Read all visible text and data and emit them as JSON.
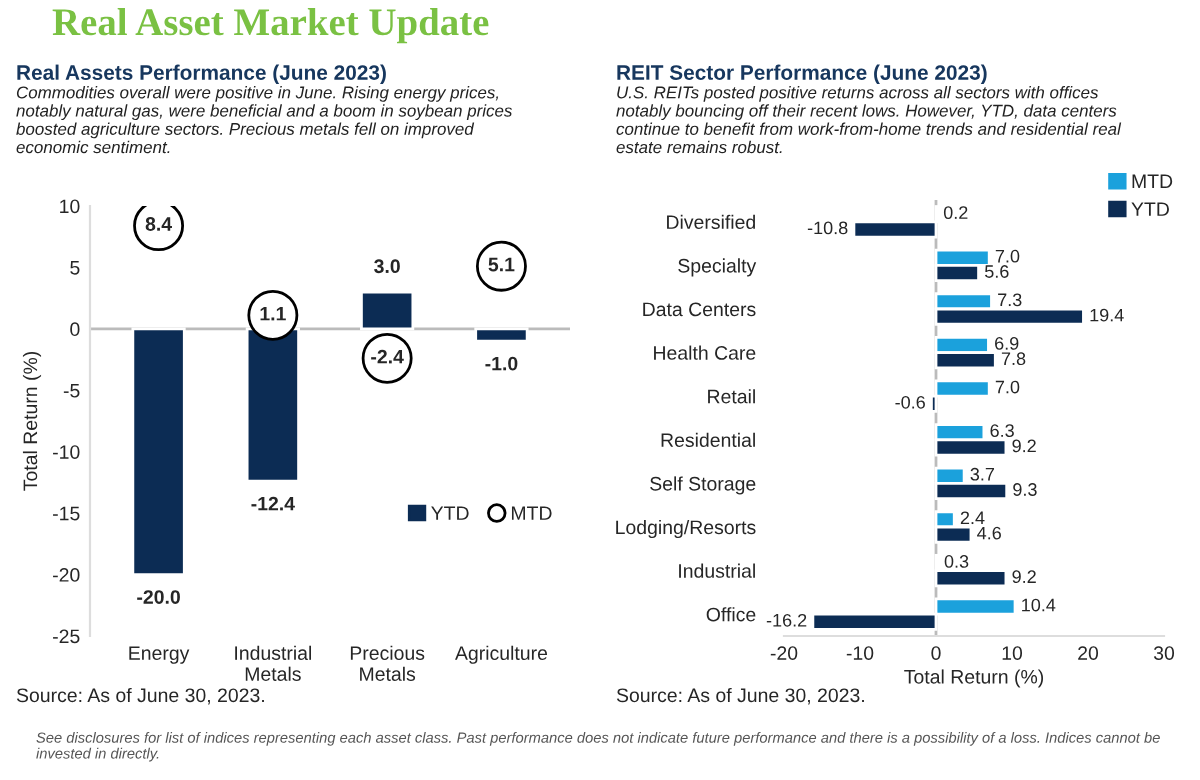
{
  "chart_data": [
    {
      "type": "bar",
      "title": "Real Assets Performance (June 2023)",
      "subtitle": "Commodities overall were positive in June. Rising energy prices, notably natural gas, were beneficial and a boom in soybean prices boosted agriculture sectors. Precious metals fell on improved economic sentiment.",
      "ylabel": "Total Return (%)",
      "categories": [
        "Energy",
        "Industrial\nMetals",
        "Precious\nMetals",
        "Agriculture"
      ],
      "series": [
        {
          "name": "YTD",
          "type": "bar",
          "color": "#0c2c54",
          "values": [
            -20.0,
            -12.4,
            3.0,
            -1.0
          ],
          "value_labels": [
            "-20.0",
            "-12.4",
            "3.0",
            "-1.0"
          ]
        },
        {
          "name": "MTD",
          "type": "scatter",
          "marker": "circle",
          "color": "#000000",
          "values": [
            8.4,
            1.1,
            -2.4,
            5.1
          ],
          "value_labels": [
            "8.4",
            "1.1",
            "-2.4",
            "5.1"
          ]
        }
      ],
      "ylim": [
        -25,
        10
      ],
      "yticks": [
        -25,
        -20,
        -15,
        -10,
        -5,
        0,
        5,
        10
      ],
      "legend": "lower right",
      "annotations": [
        "Real Asset Market Update",
        "Source: As of June 30, 2023."
      ]
    },
    {
      "type": "bar",
      "orientation": "horizontal",
      "title": "REIT Sector Performance (June 2023)",
      "subtitle": "U.S. REITs posted positive returns across all sectors with offices notably bouncing off their recent lows. However, YTD, data centers continue to benefit from work-from-home trends and residential real estate remains robust.",
      "xlabel": "Total Return (%)",
      "categories": [
        "Diversified",
        "Specialty",
        "Data Centers",
        "Health Care",
        "Retail",
        "Residential",
        "Self Storage",
        "Lodging/Resorts",
        "Industrial",
        "Office"
      ],
      "series": [
        {
          "name": "MTD",
          "color": "#1ba1dc",
          "values": [
            0.2,
            7.0,
            7.3,
            6.9,
            7.0,
            6.3,
            3.7,
            2.4,
            0.3,
            10.4
          ],
          "value_labels": [
            "0.2",
            "7.0",
            "7.3",
            "6.9",
            "7.0",
            "6.3",
            "3.7",
            "2.4",
            "0.3",
            "10.4"
          ]
        },
        {
          "name": "YTD",
          "color": "#0c2c54",
          "values": [
            -10.8,
            5.6,
            19.4,
            7.8,
            -0.6,
            9.2,
            9.3,
            4.6,
            9.2,
            -16.2
          ],
          "value_labels": [
            "-10.8",
            "5.6",
            "19.4",
            "7.8",
            "-0.6",
            "9.2",
            "9.3",
            "4.6",
            "9.2",
            "-16.2"
          ]
        }
      ],
      "xlim": [
        -20,
        30
      ],
      "xticks": [
        -20,
        -10,
        0,
        10,
        20,
        30
      ],
      "legend": "top right",
      "annotations": [
        "Source: As of June 30, 2023.",
        "See disclosures for list of indices representing each asset class. Past performance does not indicate future performance and there is a possibility of a loss. Indices cannot be invested in directly."
      ]
    }
  ]
}
